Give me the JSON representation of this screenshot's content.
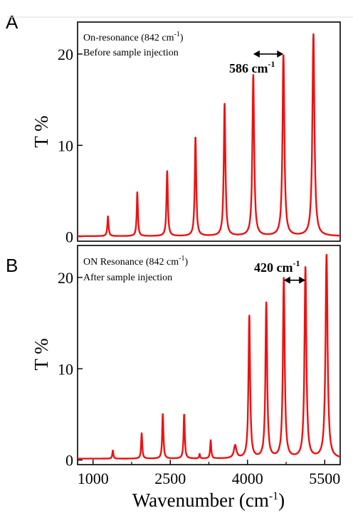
{
  "chart_data": [
    {
      "panel": "A",
      "type": "line",
      "ylabel": "T %",
      "xlim": [
        700,
        5800
      ],
      "ylim": [
        -0.5,
        23.5
      ],
      "yticks": [
        0,
        10,
        20
      ],
      "color": "#ee1111",
      "annotation_line1": "On-resonance (842 cm",
      "annotation_line1_sup": "-1",
      "annotation_line1_end": ")",
      "annotation_line2": "Before sample injection",
      "separation_label": "586 cm",
      "separation_sup": "-1",
      "separation": {
        "from": 4112,
        "to": 4698,
        "y": 20
      },
      "peaks": [
        {
          "x": 1290,
          "y": 2.2,
          "w": 14
        },
        {
          "x": 1860,
          "y": 4.8,
          "w": 14
        },
        {
          "x": 2440,
          "y": 7.1,
          "w": 16
        },
        {
          "x": 2990,
          "y": 10.9,
          "w": 17
        },
        {
          "x": 3555,
          "y": 14.5,
          "w": 19
        },
        {
          "x": 4112,
          "y": 17.6,
          "w": 21
        },
        {
          "x": 4698,
          "y": 19.9,
          "w": 22
        },
        {
          "x": 5280,
          "y": 22.1,
          "w": 24
        }
      ],
      "baseline": 0.05
    },
    {
      "panel": "B",
      "type": "line",
      "ylabel": "T %",
      "xlabel": "Wavenumber (cm",
      "xlabel_sup": "-1",
      "xlabel_end": ")",
      "xlim": [
        700,
        5800
      ],
      "ylim": [
        -0.5,
        23.5
      ],
      "yticks": [
        0,
        10,
        20
      ],
      "xticks": [
        1000,
        2500,
        4000,
        5500
      ],
      "color": "#ee1111",
      "annotation_line1": "ON Resonance (842 cm",
      "annotation_line1_sup": "-1",
      "annotation_line1_end": ")",
      "annotation_line2": "After sample injection",
      "separation_label": "420 cm",
      "separation_sup": "-1",
      "separation": {
        "from": 4705,
        "to": 5125,
        "y": 19.7
      },
      "peaks": [
        {
          "x": 1385,
          "y": 0.9,
          "w": 12
        },
        {
          "x": 1945,
          "y": 2.8,
          "w": 13
        },
        {
          "x": 2355,
          "y": 4.9,
          "w": 14
        },
        {
          "x": 2770,
          "y": 4.9,
          "w": 14
        },
        {
          "x": 3070,
          "y": 0.5,
          "w": 10
        },
        {
          "x": 3285,
          "y": 2.0,
          "w": 13
        },
        {
          "x": 3760,
          "y": 1.4,
          "w": 30
        },
        {
          "x": 4035,
          "y": 15.6,
          "w": 19
        },
        {
          "x": 4365,
          "y": 17.0,
          "w": 20
        },
        {
          "x": 4705,
          "y": 19.7,
          "w": 21
        },
        {
          "x": 5125,
          "y": 20.9,
          "w": 22
        },
        {
          "x": 5535,
          "y": 22.3,
          "w": 24
        }
      ],
      "baseline": 0.15
    }
  ]
}
